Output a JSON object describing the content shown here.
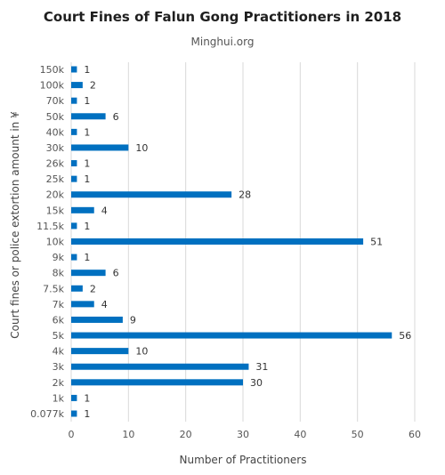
{
  "chart_data": {
    "type": "bar",
    "orientation": "horizontal",
    "title": "Court Fines of Falun Gong Practitioners in 2018",
    "subtitle": "Minghui.org",
    "xlabel": "Number  of Practitioners",
    "ylabel": "Court fines or police extortion amount in ¥",
    "xlim": [
      0,
      60
    ],
    "x_ticks": [
      0,
      10,
      20,
      30,
      40,
      50,
      60
    ],
    "grid": true,
    "legend": "none",
    "bar_color": "#0070c0",
    "categories": [
      "150k",
      "100k",
      "70k",
      "50k",
      "40k",
      "30k",
      "26k",
      "25k",
      "20k",
      "15k",
      "11.5k",
      "10k",
      "9k",
      "8k",
      "7.5k",
      "7k",
      "6k",
      "5k",
      "4k",
      "3k",
      "2k",
      "1k",
      "0.077k"
    ],
    "values": [
      1,
      2,
      1,
      6,
      1,
      10,
      1,
      1,
      28,
      4,
      1,
      51,
      1,
      6,
      2,
      4,
      9,
      56,
      10,
      31,
      30,
      1,
      1
    ]
  }
}
